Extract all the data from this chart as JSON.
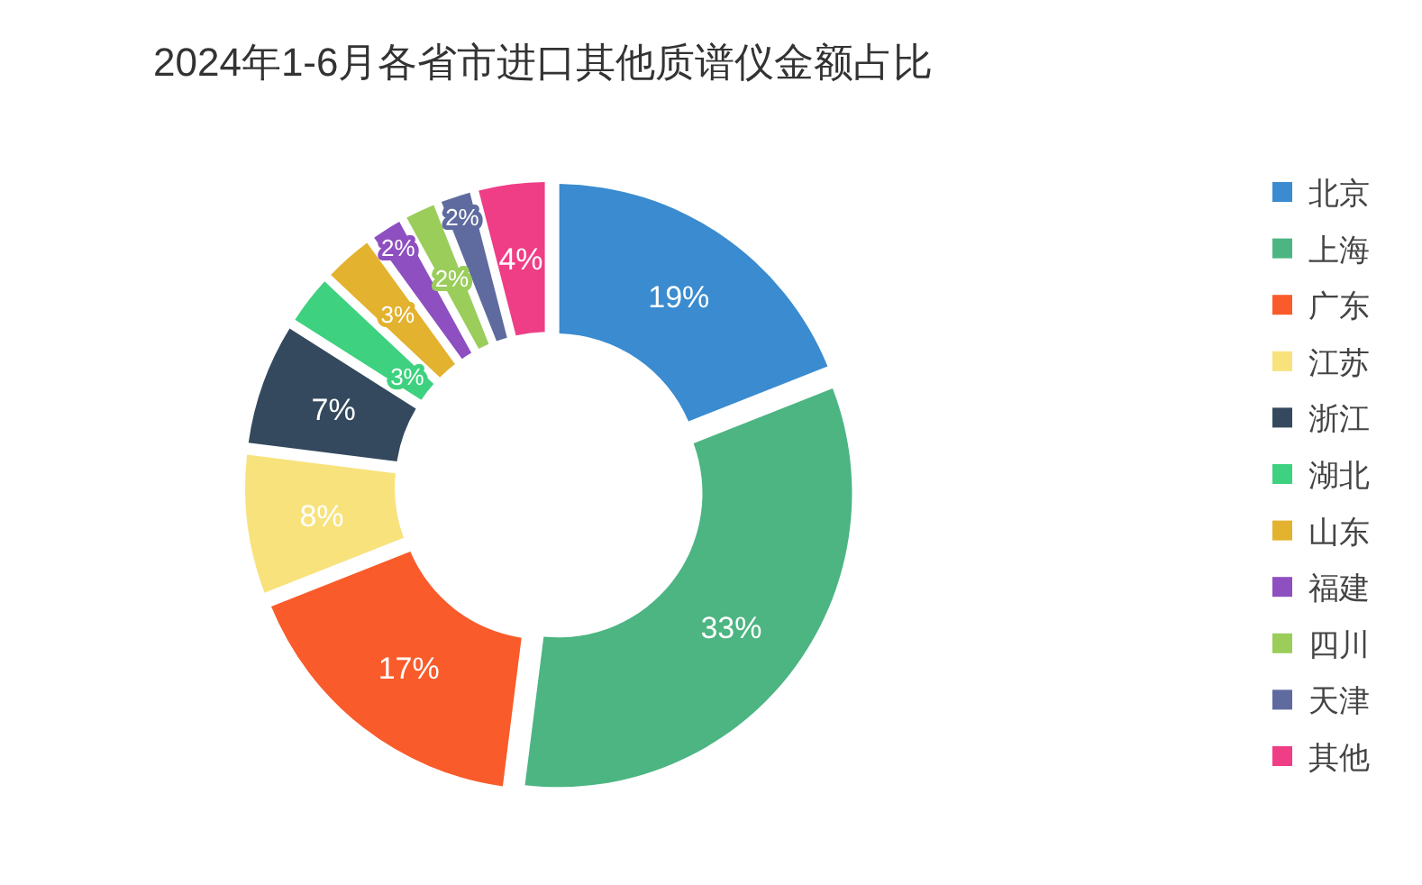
{
  "chart_data": {
    "type": "donut",
    "title": "2024年1-6月各省市进口其他质谱仪金额占比",
    "categories": [
      "北京",
      "上海",
      "广东",
      "江苏",
      "浙江",
      "湖北",
      "山东",
      "福建",
      "四川",
      "天津",
      "其他"
    ],
    "values": [
      19,
      33,
      17,
      8,
      7,
      3,
      3,
      2,
      2,
      2,
      4
    ],
    "colors": [
      "#3a8bcf",
      "#4cb582",
      "#f95b2a",
      "#f8e27c",
      "#34495e",
      "#3ed17f",
      "#e3b22e",
      "#8e4fc0",
      "#9acd5a",
      "#5f6b9f",
      "#ef3d86"
    ],
    "value_labels": [
      "19%",
      "33%",
      "17%",
      "8%",
      "7%",
      "3%",
      "3%",
      "2%",
      "2%",
      "2%",
      "4%"
    ],
    "legend": "right"
  }
}
